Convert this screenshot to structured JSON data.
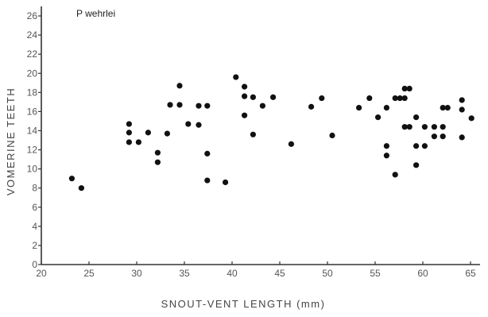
{
  "chart_data": {
    "type": "scatter",
    "title": "",
    "annotation": "P wehrlei",
    "xlabel": "SNOUT-VENT LENGTH (mm)",
    "ylabel": "VOMERINE TEETH",
    "xlim": [
      20,
      66
    ],
    "ylim": [
      0,
      27
    ],
    "x_ticks": [
      20,
      25,
      30,
      35,
      40,
      45,
      50,
      55,
      60,
      65
    ],
    "y_ticks": [
      0,
      2,
      4,
      6,
      8,
      10,
      12,
      14,
      16,
      18,
      20,
      22,
      24,
      26
    ],
    "grid": false,
    "colors": {
      "points": "#111111",
      "axes": "#333333",
      "text": "#555555"
    },
    "series": [
      {
        "points": [
          [
            23.2,
            9
          ],
          [
            24.2,
            8
          ],
          [
            29.2,
            14.7
          ],
          [
            29.2,
            13.8
          ],
          [
            29.2,
            12.8
          ],
          [
            30.2,
            12.8
          ],
          [
            31.2,
            13.8
          ],
          [
            32.2,
            11.7
          ],
          [
            32.2,
            10.7
          ],
          [
            33.2,
            13.7
          ],
          [
            33.5,
            16.7
          ],
          [
            34.5,
            16.7
          ],
          [
            34.5,
            18.7
          ],
          [
            35.4,
            14.7
          ],
          [
            36.5,
            14.6
          ],
          [
            36.5,
            16.6
          ],
          [
            37.4,
            16.6
          ],
          [
            37.4,
            11.6
          ],
          [
            37.4,
            8.8
          ],
          [
            39.3,
            8.6
          ],
          [
            40.4,
            19.6
          ],
          [
            41.3,
            18.6
          ],
          [
            41.3,
            17.6
          ],
          [
            41.3,
            15.6
          ],
          [
            42.2,
            17.5
          ],
          [
            42.2,
            13.6
          ],
          [
            43.2,
            16.6
          ],
          [
            44.3,
            17.5
          ],
          [
            46.2,
            12.6
          ],
          [
            48.3,
            16.5
          ],
          [
            49.4,
            17.4
          ],
          [
            50.5,
            13.5
          ],
          [
            53.3,
            16.4
          ],
          [
            54.4,
            17.4
          ],
          [
            55.3,
            15.4
          ],
          [
            56.2,
            16.4
          ],
          [
            56.2,
            12.4
          ],
          [
            56.2,
            11.4
          ],
          [
            57.1,
            17.4
          ],
          [
            57.1,
            9.4
          ],
          [
            57.6,
            17.4
          ],
          [
            58.1,
            18.4
          ],
          [
            58.1,
            17.4
          ],
          [
            58.1,
            14.4
          ],
          [
            58.6,
            18.4
          ],
          [
            58.6,
            14.4
          ],
          [
            59.3,
            15.4
          ],
          [
            59.3,
            12.4
          ],
          [
            59.3,
            10.4
          ],
          [
            60.2,
            14.4
          ],
          [
            60.2,
            12.4
          ],
          [
            61.2,
            14.4
          ],
          [
            61.2,
            13.4
          ],
          [
            62.1,
            16.4
          ],
          [
            62.1,
            14.4
          ],
          [
            62.1,
            13.4
          ],
          [
            62.6,
            16.4
          ],
          [
            64.1,
            17.2
          ],
          [
            64.1,
            16.2
          ],
          [
            64.1,
            13.3
          ],
          [
            65.1,
            15.3
          ]
        ]
      }
    ]
  }
}
